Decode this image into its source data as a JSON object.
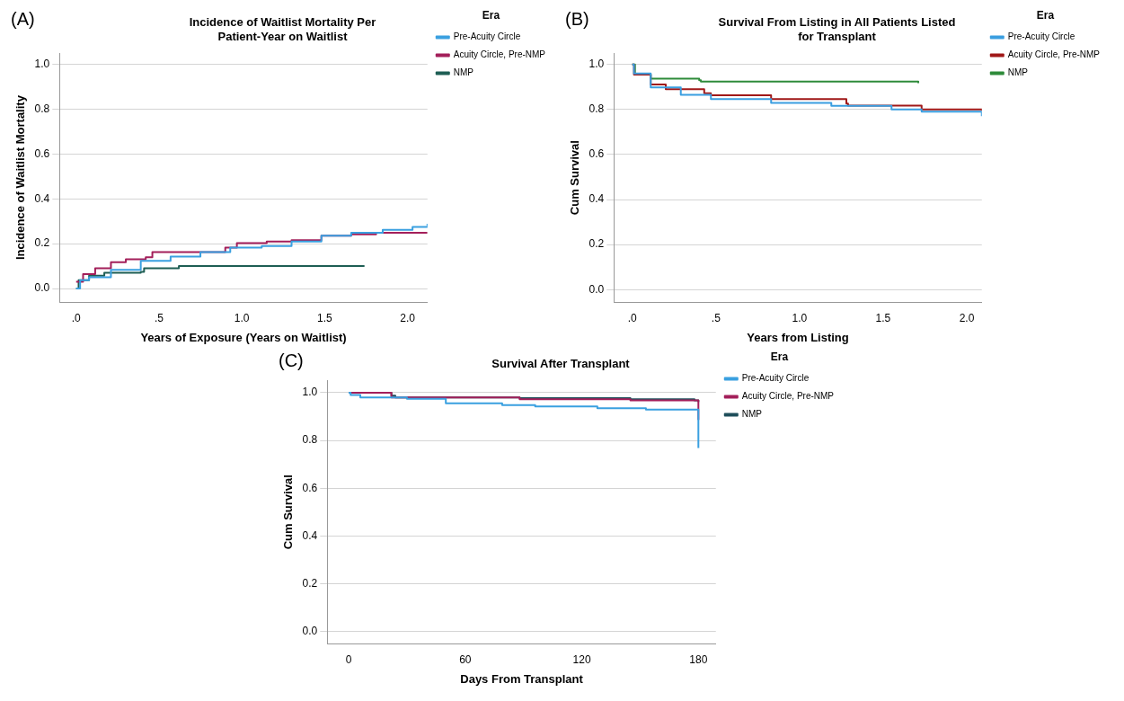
{
  "chart_data": [
    {
      "type": "step",
      "title": "Incidence of Waitlist Mortality Per Patient-Year on Waitlist",
      "xlabel": "Years of Exposure (Years on Waitlist)",
      "ylabel": "Incidence of Waitlist Mortality",
      "legend_title": "Era",
      "legend": "right",
      "grid": "y",
      "annotations": [
        "(A)"
      ],
      "xlim": [
        -0.1,
        2.12
      ],
      "xticks": [
        {
          "value": 0,
          "label": ".0"
        },
        {
          "value": 0.5,
          "label": ".5"
        },
        {
          "value": 1,
          "label": "1.0"
        },
        {
          "value": 1.5,
          "label": "1.5"
        },
        {
          "value": 2,
          "label": "2.0"
        }
      ],
      "ylim": [
        -0.06,
        1.05
      ],
      "yticks": [
        {
          "value": 0,
          "label": "0.0"
        },
        {
          "value": 0.2,
          "label": "0.2"
        },
        {
          "value": 0.4,
          "label": "0.4"
        },
        {
          "value": 0.6,
          "label": "0.6"
        },
        {
          "value": 0.8,
          "label": "0.8"
        },
        {
          "value": 1,
          "label": "1.0"
        }
      ],
      "series": [
        {
          "name": "Pre-Acuity Circle",
          "color": "#3aa0e0",
          "x": [
            0,
            0.024,
            0.078,
            0.21,
            0.39,
            0.57,
            0.75,
            0.93,
            1.12,
            1.3,
            1.48,
            1.66,
            1.85,
            2.03,
            2.12
          ],
          "values": [
            0,
            0.037,
            0.05,
            0.083,
            0.123,
            0.143,
            0.163,
            0.183,
            0.19,
            0.21,
            0.236,
            0.249,
            0.262,
            0.275,
            0.289
          ]
        },
        {
          "name": "Acuity Circle, Pre-NMP",
          "color": "#a31f5a",
          "x": [
            0,
            0.042,
            0.115,
            0.21,
            0.3,
            0.42,
            0.46,
            0.66,
            0.9,
            0.97,
            1.15,
            1.3,
            1.48,
            1.66,
            1.81,
            2.12
          ],
          "values": [
            0.03,
            0.064,
            0.09,
            0.117,
            0.13,
            0.14,
            0.163,
            0.163,
            0.183,
            0.203,
            0.21,
            0.216,
            0.236,
            0.242,
            0.249,
            0.249
          ]
        },
        {
          "name": "NMP",
          "color": "#1e5e54",
          "x": [
            0,
            0.015,
            0.078,
            0.17,
            0.39,
            0.41,
            0.61,
            0.62,
            1.74
          ],
          "values": [
            0,
            0.037,
            0.057,
            0.07,
            0.074,
            0.09,
            0.09,
            0.1,
            0.1
          ]
        }
      ]
    },
    {
      "type": "step",
      "title": "Survival From Listing in All Patients Listed for Transplant",
      "xlabel": "Years from Listing",
      "ylabel": "Cum Survival",
      "legend_title": "Era",
      "legend": "right",
      "grid": "y",
      "annotations": [
        "(B)"
      ],
      "xlim": [
        -0.11,
        2.09
      ],
      "xticks": [
        {
          "value": 0,
          "label": ".0"
        },
        {
          "value": 0.5,
          "label": ".5"
        },
        {
          "value": 1,
          "label": "1.0"
        },
        {
          "value": 1.5,
          "label": "1.5"
        },
        {
          "value": 2,
          "label": "2.0"
        }
      ],
      "ylim": [
        -0.055,
        1.05
      ],
      "yticks": [
        {
          "value": 0,
          "label": "0.0"
        },
        {
          "value": 0.2,
          "label": "0.2"
        },
        {
          "value": 0.4,
          "label": "0.4"
        },
        {
          "value": 0.6,
          "label": "0.6"
        },
        {
          "value": 0.8,
          "label": "0.8"
        },
        {
          "value": 1,
          "label": "1.0"
        }
      ],
      "series": [
        {
          "name": "Pre-Acuity Circle",
          "color": "#3a9ee0",
          "x": [
            0,
            0.01,
            0.11,
            0.29,
            0.47,
            0.83,
            1.19,
            1.55,
            1.73,
            2.09
          ],
          "values": [
            1,
            0.96,
            0.898,
            0.865,
            0.846,
            0.829,
            0.816,
            0.8,
            0.79,
            0.77
          ]
        },
        {
          "name": "Acuity Circle, Pre-NMP",
          "color": "#a01818",
          "x": [
            0,
            0.01,
            0.11,
            0.2,
            0.43,
            0.47,
            0.83,
            1.28,
            1.29,
            1.73,
            2.09
          ],
          "values": [
            1,
            0.955,
            0.911,
            0.89,
            0.872,
            0.863,
            0.846,
            0.826,
            0.817,
            0.8,
            0.794
          ]
        },
        {
          "name": "NMP",
          "color": "#2e8b3a",
          "x": [
            0,
            0.016,
            0.11,
            0.4,
            0.41,
            1.71
          ],
          "values": [
            1,
            0.956,
            0.937,
            0.93,
            0.924,
            0.917
          ]
        }
      ]
    },
    {
      "type": "step",
      "title": "Survival After Transplant",
      "xlabel": "Days From Transplant",
      "ylabel": "Cum Survival",
      "legend_title": "Era",
      "legend": "right",
      "grid": "y",
      "annotations": [
        "(C)"
      ],
      "xlim": [
        -11,
        189
      ],
      "xticks": [
        0,
        60,
        120,
        180
      ],
      "ylim": [
        -0.05,
        1.05
      ],
      "yticks": [
        {
          "value": 0,
          "label": "0.0"
        },
        {
          "value": 0.2,
          "label": "0.2"
        },
        {
          "value": 0.4,
          "label": "0.4"
        },
        {
          "value": 0.6,
          "label": "0.6"
        },
        {
          "value": 0.8,
          "label": "0.8"
        },
        {
          "value": 1,
          "label": "1.0"
        }
      ],
      "series": [
        {
          "name": "Pre-Acuity Circle",
          "color": "#3aa0e0",
          "x": [
            0,
            1,
            6,
            30,
            50,
            79,
            96,
            128,
            153,
            180
          ],
          "values": [
            1,
            0.99,
            0.98,
            0.974,
            0.955,
            0.948,
            0.942,
            0.935,
            0.929,
            0.768
          ]
        },
        {
          "name": "Acuity Circle, Pre-NMP",
          "color": "#a31f5a",
          "x": [
            0,
            22,
            88,
            145,
            180
          ],
          "values": [
            1,
            0.98,
            0.972,
            0.968,
            0.886
          ]
        },
        {
          "name": "NMP",
          "color": "#1e4e5a",
          "x": [
            0,
            22,
            24,
            88,
            145,
            178,
            180
          ],
          "values": [
            1,
            0.987,
            0.98,
            0.977,
            0.972,
            0.968,
            0.961
          ]
        }
      ]
    }
  ]
}
